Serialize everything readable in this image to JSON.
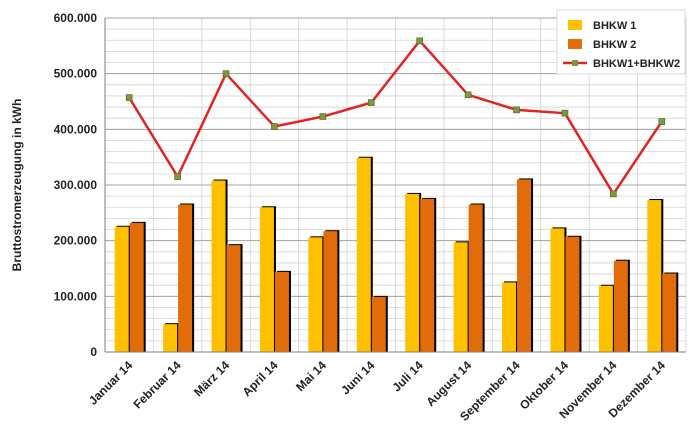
{
  "chart_data": {
    "type": "bar",
    "title": "",
    "xlabel": "",
    "ylabel": "Bruttostromerzeugung in kWh",
    "ylim": [
      0,
      600000
    ],
    "ytick_step": 100000,
    "ytick_labels": [
      "0",
      "100.000",
      "200.000",
      "300.000",
      "400.000",
      "500.000",
      "600.000"
    ],
    "grid": true,
    "legend_position": "top-right",
    "categories": [
      "Januar 14",
      "Februar 14",
      "März 14",
      "April 14",
      "Mai 14",
      "Juni 14",
      "Juli 14",
      "August 14",
      "September 14",
      "Oktober 14",
      "November 14",
      "Dezember 14"
    ],
    "series": [
      {
        "name": "BHKW 1",
        "kind": "bar",
        "color": "#FFC000",
        "shadow": "#000000",
        "values": [
          225000,
          50000,
          308000,
          260000,
          206000,
          349000,
          284000,
          197000,
          125000,
          222000,
          119000,
          273000
        ]
      },
      {
        "name": "BHKW 2",
        "kind": "bar",
        "color": "#E36C0A",
        "shadow": "#000000",
        "values": [
          232000,
          265000,
          192000,
          144000,
          217000,
          99000,
          275000,
          265000,
          310000,
          207000,
          164000,
          141000
        ]
      },
      {
        "name": "BHKW1+BHKW2",
        "kind": "line",
        "color": "#E32222",
        "marker_color": "#7C9A3C",
        "values": [
          457000,
          315000,
          500000,
          405000,
          423000,
          448000,
          559000,
          462000,
          435000,
          429000,
          284000,
          414000
        ]
      }
    ]
  }
}
